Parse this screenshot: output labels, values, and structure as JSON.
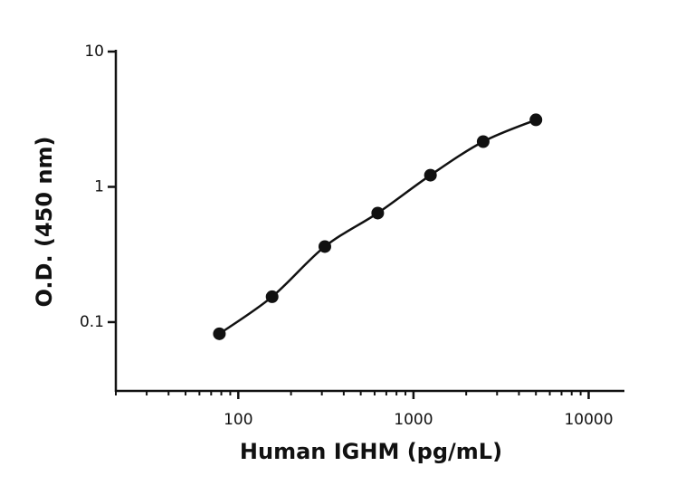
{
  "chart_data": {
    "type": "scatter",
    "x_label": "Human IGHM (pg/mL)",
    "y_label": "O.D. (450 nm)",
    "x_log": true,
    "y_log": true,
    "x_minor_ticks": true,
    "xlim": [
      20,
      16000
    ],
    "ylim": [
      0.031,
      10
    ],
    "xticks": [
      100,
      1000,
      10000
    ],
    "yticks": [
      0.1,
      1,
      10
    ],
    "color": "#111111",
    "fit_line": true,
    "x": [
      78,
      156,
      312,
      625,
      1250,
      2500,
      5000
    ],
    "values": [
      0.082,
      0.154,
      0.362,
      0.64,
      1.22,
      2.16,
      3.13
    ]
  }
}
